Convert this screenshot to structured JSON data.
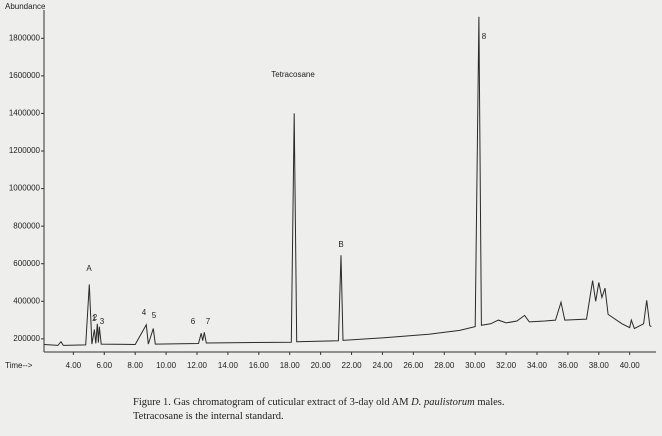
{
  "chart_data": {
    "type": "line",
    "y_label": "Abundance",
    "x_label": "Time-->",
    "x": [
      2.1,
      3.0,
      3.2,
      3.35,
      4.8,
      5.03,
      5.2,
      5.36,
      5.45,
      5.55,
      5.62,
      5.68,
      5.8,
      8.0,
      8.72,
      8.85,
      9.17,
      9.3,
      12.1,
      12.27,
      12.37,
      12.47,
      12.6,
      18.1,
      18.29,
      18.45,
      21.15,
      21.32,
      21.45,
      24.0,
      27.0,
      29.0,
      30.0,
      30.24,
      30.4,
      31.0,
      31.5,
      32.0,
      32.7,
      33.2,
      33.5,
      34.5,
      35.2,
      35.55,
      35.8,
      37.2,
      37.6,
      37.8,
      38.0,
      38.2,
      38.4,
      38.6,
      39.5,
      40.0,
      40.1,
      40.3,
      40.9,
      41.1,
      41.3,
      41.4
    ],
    "values": [
      170000,
      165000,
      185000,
      165000,
      168000,
      490000,
      172000,
      250000,
      175000,
      280000,
      180000,
      265000,
      172000,
      170000,
      275000,
      172000,
      255000,
      172000,
      175000,
      230000,
      190000,
      235000,
      178000,
      182000,
      1400000,
      185000,
      190000,
      645000,
      192000,
      205000,
      225000,
      245000,
      265000,
      1915000,
      272000,
      280000,
      300000,
      285000,
      295000,
      325000,
      290000,
      295000,
      300000,
      395000,
      300000,
      305000,
      510000,
      400000,
      500000,
      420000,
      470000,
      330000,
      280000,
      260000,
      300000,
      255000,
      280000,
      405000,
      270000,
      265000
    ],
    "color": "#2a2a2a",
    "xlim": [
      2.1,
      41.7
    ],
    "ylim": [
      130000,
      1940000
    ],
    "xticks": [
      {
        "value": 4,
        "label": "4.00"
      },
      {
        "value": 6,
        "label": "6.00"
      },
      {
        "value": 8,
        "label": "8.00"
      },
      {
        "value": 10,
        "label": "10.00"
      },
      {
        "value": 12,
        "label": "12.00"
      },
      {
        "value": 14,
        "label": "14.00"
      },
      {
        "value": 16,
        "label": "16.00"
      },
      {
        "value": 18,
        "label": "18.00"
      },
      {
        "value": 20,
        "label": "20.00"
      },
      {
        "value": 22,
        "label": "22.00"
      },
      {
        "value": 24,
        "label": "24.00"
      },
      {
        "value": 26,
        "label": "26.00"
      },
      {
        "value": 28,
        "label": "28.00"
      },
      {
        "value": 30,
        "label": "30.00"
      },
      {
        "value": 32,
        "label": "32.00"
      },
      {
        "value": 34,
        "label": "34.00"
      },
      {
        "value": 36,
        "label": "36.00"
      },
      {
        "value": 38,
        "label": "38.00"
      },
      {
        "value": 40,
        "label": "40.00"
      }
    ],
    "yticks": [
      200000,
      400000,
      600000,
      800000,
      1000000,
      1200000,
      1400000,
      1600000,
      1800000
    ],
    "annotations": [
      "A",
      "1",
      "2",
      "3",
      "4",
      "5",
      "6",
      "7",
      "Tetracosane",
      "B",
      "8"
    ],
    "caption": {
      "line1_start": "Figure 1.  Gas chromatogram of cuticular extract of 3-day old AM ",
      "species": "D. paulistorum",
      "line1_end": " males.",
      "line2": "Tetracosane is the internal standard."
    }
  }
}
